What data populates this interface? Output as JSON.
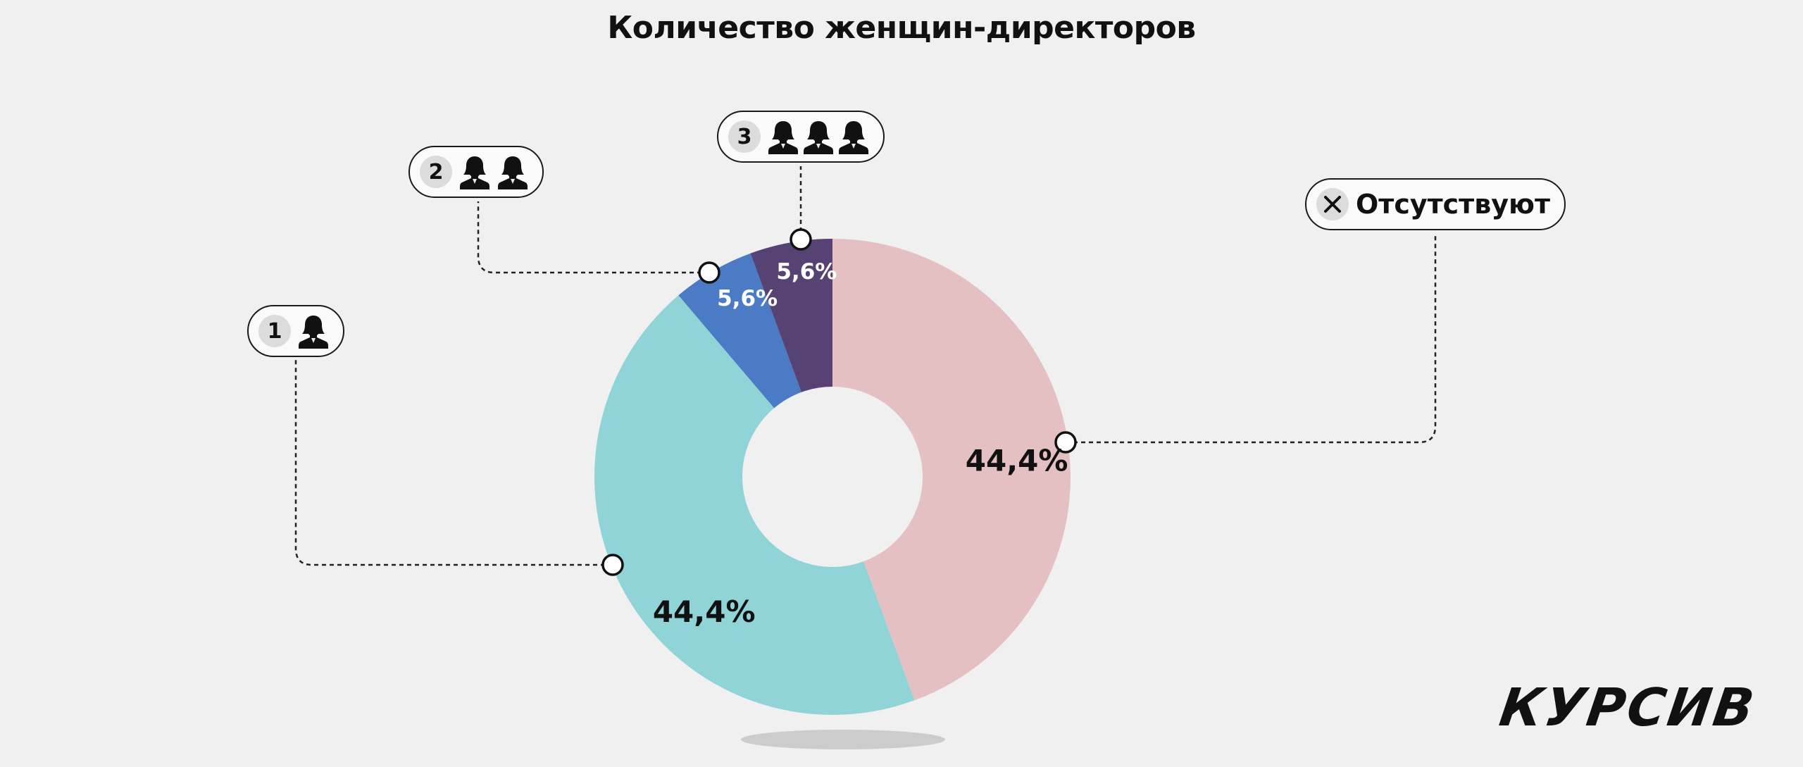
{
  "chart_data": {
    "type": "pie",
    "title": "Количество женщин-директоров",
    "slices": [
      {
        "label": "Отсутствуют",
        "value": 44.4,
        "display": "44,4%",
        "color": "#e4c0c2"
      },
      {
        "label": "1",
        "value": 44.4,
        "display": "44,4%",
        "color": "#90d4d8"
      },
      {
        "label": "2",
        "value": 5.6,
        "display": "5,6%",
        "color": "#4b7bc4"
      },
      {
        "label": "3",
        "value": 5.6,
        "display": "5,6%",
        "color": "#574373"
      }
    ]
  },
  "callouts": {
    "absent": {
      "text": "Отсутствуют",
      "icon": "close-icon"
    },
    "one": {
      "number": "1",
      "icon": "person-icon",
      "count": 1
    },
    "two": {
      "number": "2",
      "icon": "person-icon",
      "count": 2
    },
    "three": {
      "number": "3",
      "icon": "person-icon",
      "count": 3
    }
  },
  "brand": {
    "logo": "КУРСИВ"
  }
}
